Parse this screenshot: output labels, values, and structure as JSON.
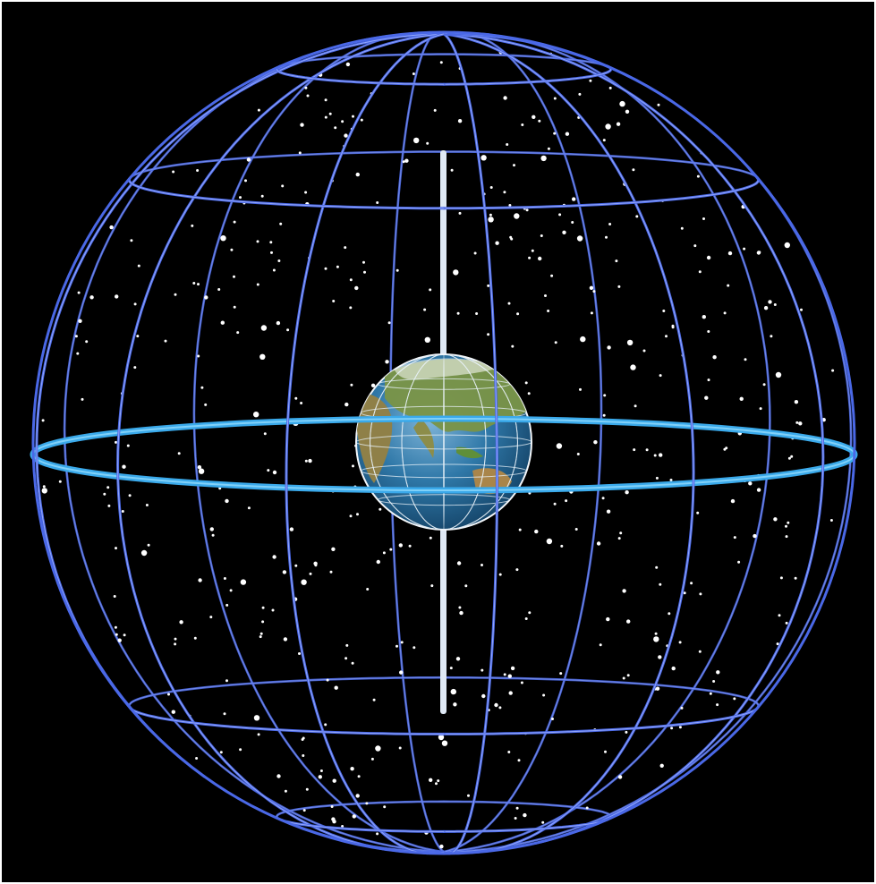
{
  "diagram": {
    "background_color": "#000000",
    "frame_color": "#ffffff",
    "sphere_line_color": "#4a68e6",
    "sphere_line_highlight": "#a6b8ff",
    "equator_color": "#3aa9ea",
    "axis_color": "#dfe9f5",
    "star_color": "#ffffff",
    "earth_ocean_color": "#2a6f9e",
    "earth_land_color": "#6f8a3c",
    "earth_grid_color": "#e8f1f8"
  },
  "elements": {
    "celestial_sphere": "celestial-sphere",
    "celestial_equator": "celestial-equator",
    "rotation_axis": "rotation-axis",
    "earth": "earth-globe",
    "stars": "star-field"
  }
}
